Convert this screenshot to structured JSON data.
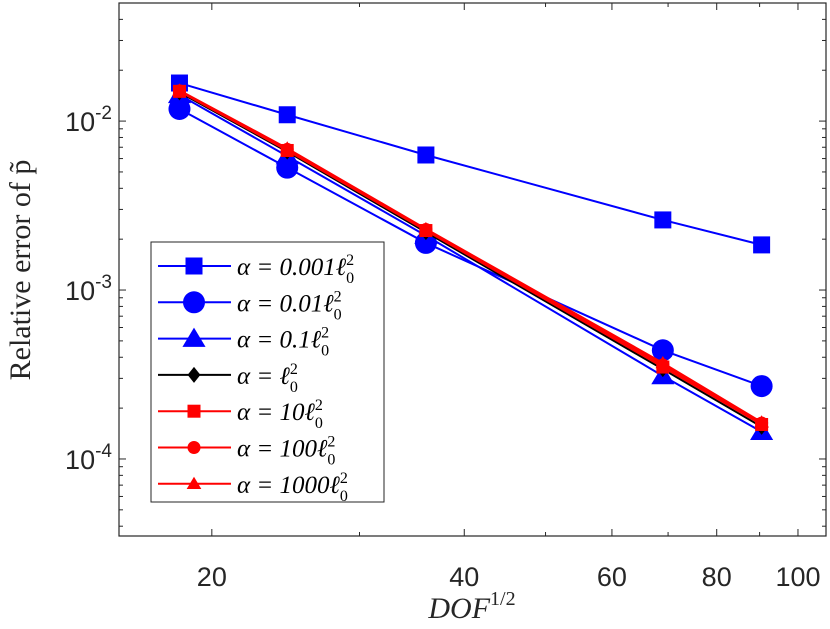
{
  "chart_data": {
    "type": "line",
    "scale": {
      "x": "log",
      "y": "log"
    },
    "xlim": [
      15.5,
      108
    ],
    "ylim": [
      3.5e-05,
      0.05
    ],
    "xlabel": "DOF^{1/2}",
    "xlabel_base": "DOF",
    "xlabel_sup": "1/2",
    "ylabel": "Relative error of p̃",
    "x_ticks": [
      {
        "value": 20,
        "label": "20"
      },
      {
        "value": 40,
        "label": "40"
      },
      {
        "value": 60,
        "label": "60"
      },
      {
        "value": 80,
        "label": "80"
      },
      {
        "value": 100,
        "label": "100"
      }
    ],
    "y_ticks": [
      {
        "value": 0.0001,
        "base": "10",
        "exp": "-4"
      },
      {
        "value": 0.001,
        "base": "10",
        "exp": "-3"
      },
      {
        "value": 0.01,
        "base": "10",
        "exp": "-2"
      }
    ],
    "x": [
      18.3,
      24.6,
      36.0,
      69.0,
      90.5
    ],
    "series": [
      {
        "name": "α = 0.001ℓ₀²",
        "prefix": "α = 0.001ℓ",
        "color": "#0000ff",
        "marker": "square",
        "size": "large",
        "values": [
          0.0168,
          0.0109,
          0.0063,
          0.0026,
          0.00185
        ]
      },
      {
        "name": "α = 0.01ℓ₀²",
        "prefix": "α = 0.01ℓ",
        "color": "#0000ff",
        "marker": "circle",
        "size": "large",
        "values": [
          0.0118,
          0.0053,
          0.0019,
          0.00044,
          0.00027
        ]
      },
      {
        "name": "α = 0.1ℓ₀²",
        "prefix": "α = 0.1ℓ",
        "color": "#0000ff",
        "marker": "triangle",
        "size": "large",
        "values": [
          0.0143,
          0.0062,
          0.0021,
          0.00031,
          0.000145
        ]
      },
      {
        "name": "α = ℓ₀²",
        "prefix": "α = ℓ",
        "color": "#000000",
        "marker": "diamond",
        "size": "small",
        "values": [
          0.0148,
          0.0066,
          0.0022,
          0.00034,
          0.000155
        ]
      },
      {
        "name": "α = 10ℓ₀²",
        "prefix": "α = 10ℓ",
        "color": "#ff0000",
        "marker": "square",
        "size": "small",
        "values": [
          0.015,
          0.0067,
          0.00225,
          0.00035,
          0.00016
        ]
      },
      {
        "name": "α = 100ℓ₀²",
        "prefix": "α = 100ℓ",
        "color": "#ff0000",
        "marker": "circle",
        "size": "small",
        "values": [
          0.0151,
          0.0068,
          0.00228,
          0.00036,
          0.000163
        ]
      },
      {
        "name": "α = 1000ℓ₀²",
        "prefix": "α = 1000ℓ",
        "color": "#ff0000",
        "marker": "triangle",
        "size": "small",
        "values": [
          0.0152,
          0.0069,
          0.0023,
          0.00037,
          0.000165
        ]
      }
    ],
    "legend_position": "lower-left",
    "grid": false
  }
}
